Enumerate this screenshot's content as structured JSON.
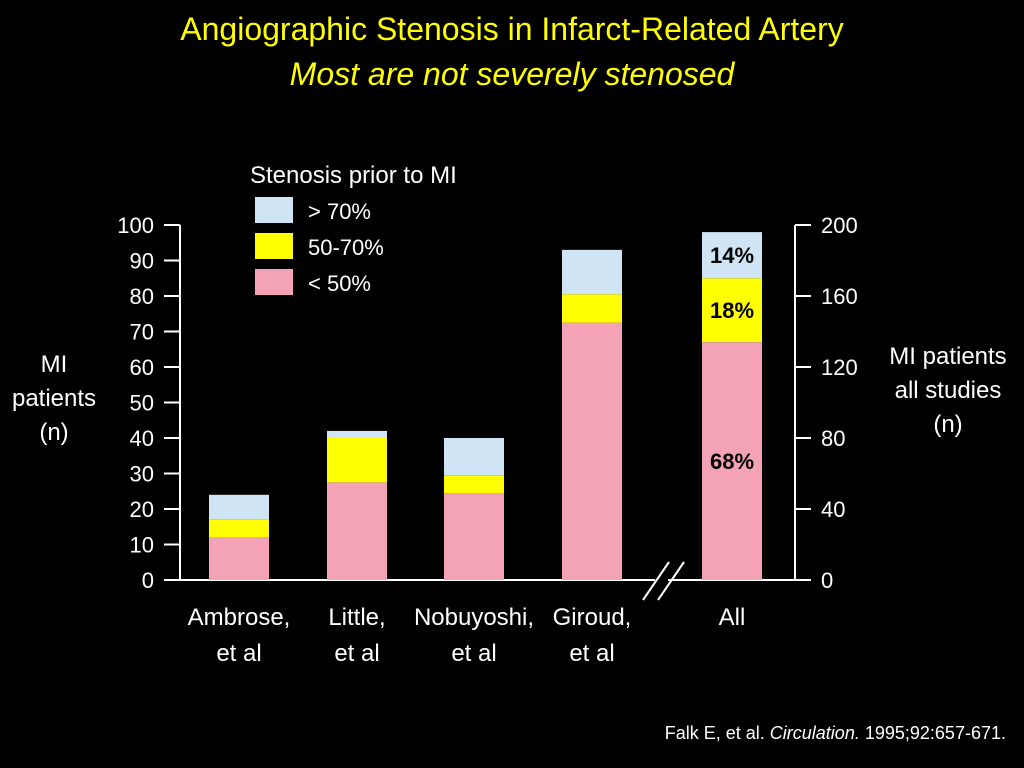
{
  "slide": {
    "title": "Angiographic Stenosis in Infarct-Related Artery",
    "subtitle": "Most are not severely stenosed",
    "citation": {
      "authors": "Falk E, et al.",
      "journal": "Circulation.",
      "ref": "1995;92:657-671."
    }
  },
  "colors": {
    "gt70": "#cfe5f5",
    "mid": "#ffff00",
    "lt50": "#f4a3b6"
  },
  "chart_data": {
    "type": "bar",
    "stacked": true,
    "legend_title": "Stenosis prior to MI",
    "legend_position": "top-center",
    "ylabel_left": [
      "MI",
      "patients",
      "(n)"
    ],
    "ylabel_right": [
      "MI patients",
      "all studies",
      "(n)"
    ],
    "ylim_left": [
      0,
      100
    ],
    "yticks_left": [
      "0",
      "10",
      "20",
      "30",
      "40",
      "50",
      "60",
      "70",
      "80",
      "90",
      "100"
    ],
    "ylim_right": [
      0,
      200
    ],
    "yticks_right": [
      "0",
      "40",
      "80",
      "120",
      "160",
      "200"
    ],
    "grid": false,
    "categories": [
      {
        "lines": [
          "Ambrose,",
          "et al"
        ],
        "values": [
          12,
          5,
          7
        ]
      },
      {
        "lines": [
          "Little,",
          "et al"
        ],
        "values": [
          27.5,
          12.5,
          2
        ]
      },
      {
        "lines": [
          "Nobuyoshi,",
          "et al"
        ],
        "values": [
          24.5,
          5,
          10.5
        ]
      },
      {
        "lines": [
          "Giroud,",
          "et al"
        ],
        "values": [
          72.5,
          8,
          12.5
        ]
      },
      {
        "lines": [
          "All"
        ],
        "axis": "right",
        "values": [
          134,
          36,
          26
        ],
        "labels": [
          "68%",
          "18%",
          "14%"
        ]
      }
    ],
    "series": [
      {
        "name": "< 50%",
        "color_key": "lt50"
      },
      {
        "name": "50-70%",
        "color_key": "mid"
      },
      {
        "name": "> 70%",
        "color_key": "gt70"
      }
    ]
  }
}
